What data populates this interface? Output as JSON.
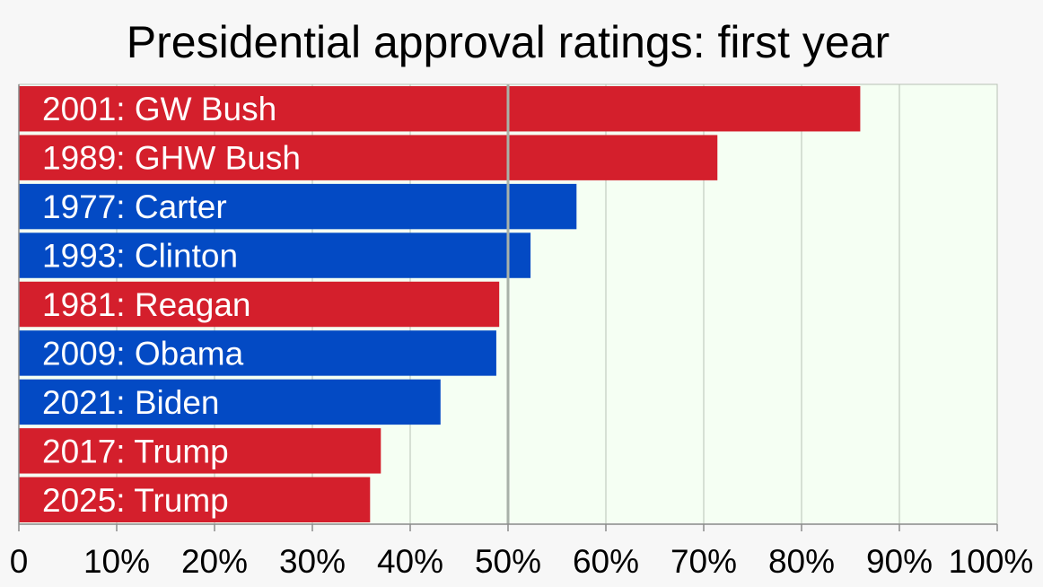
{
  "chart_data": {
    "type": "bar",
    "orientation": "horizontal",
    "title": "Presidential approval ratings: first year",
    "xlabel": "",
    "ylabel": "",
    "xlim": [
      0,
      100
    ],
    "grid": true,
    "tick_values": [
      0,
      10,
      20,
      30,
      40,
      50,
      60,
      70,
      80,
      90,
      100
    ],
    "tick_labels": [
      "0",
      "10%",
      "20%",
      "30%",
      "40%",
      "50%",
      "60%",
      "70%",
      "80%",
      "90%",
      "100%"
    ],
    "reference_line": 50,
    "colors": {
      "republican": "#d41f2c",
      "democrat": "#034ac4",
      "plot_background": "#f5fff3",
      "page_background": "#f7f7f7",
      "grid": "#b8c2b5",
      "reference": "#a9b1a9"
    },
    "bars": [
      {
        "year": "2001",
        "name": "GW Bush",
        "label": "2001:  GW Bush",
        "value": 86,
        "party": "republican"
      },
      {
        "year": "1989",
        "name": "GHW Bush",
        "label": "1989:  GHW Bush",
        "value": 71.4,
        "party": "republican"
      },
      {
        "year": "1977",
        "name": "Carter",
        "label": "1977:  Carter",
        "value": 57,
        "party": "democrat"
      },
      {
        "year": "1993",
        "name": "Clinton",
        "label": "1993:  Clinton",
        "value": 52.3,
        "party": "democrat"
      },
      {
        "year": "1981",
        "name": "Reagan",
        "label": "1981:  Reagan",
        "value": 49.1,
        "party": "republican"
      },
      {
        "year": "2009",
        "name": "Obama",
        "label": "2009:  Obama",
        "value": 48.8,
        "party": "democrat"
      },
      {
        "year": "2021",
        "name": "Biden",
        "label": "2021:  Biden",
        "value": 43.1,
        "party": "democrat"
      },
      {
        "year": "2017",
        "name": "Trump",
        "label": "2017:  Trump",
        "value": 37,
        "party": "republican"
      },
      {
        "year": "2025",
        "name": "Trump",
        "label": "2025:  Trump",
        "value": 35.9,
        "party": "republican"
      }
    ]
  }
}
